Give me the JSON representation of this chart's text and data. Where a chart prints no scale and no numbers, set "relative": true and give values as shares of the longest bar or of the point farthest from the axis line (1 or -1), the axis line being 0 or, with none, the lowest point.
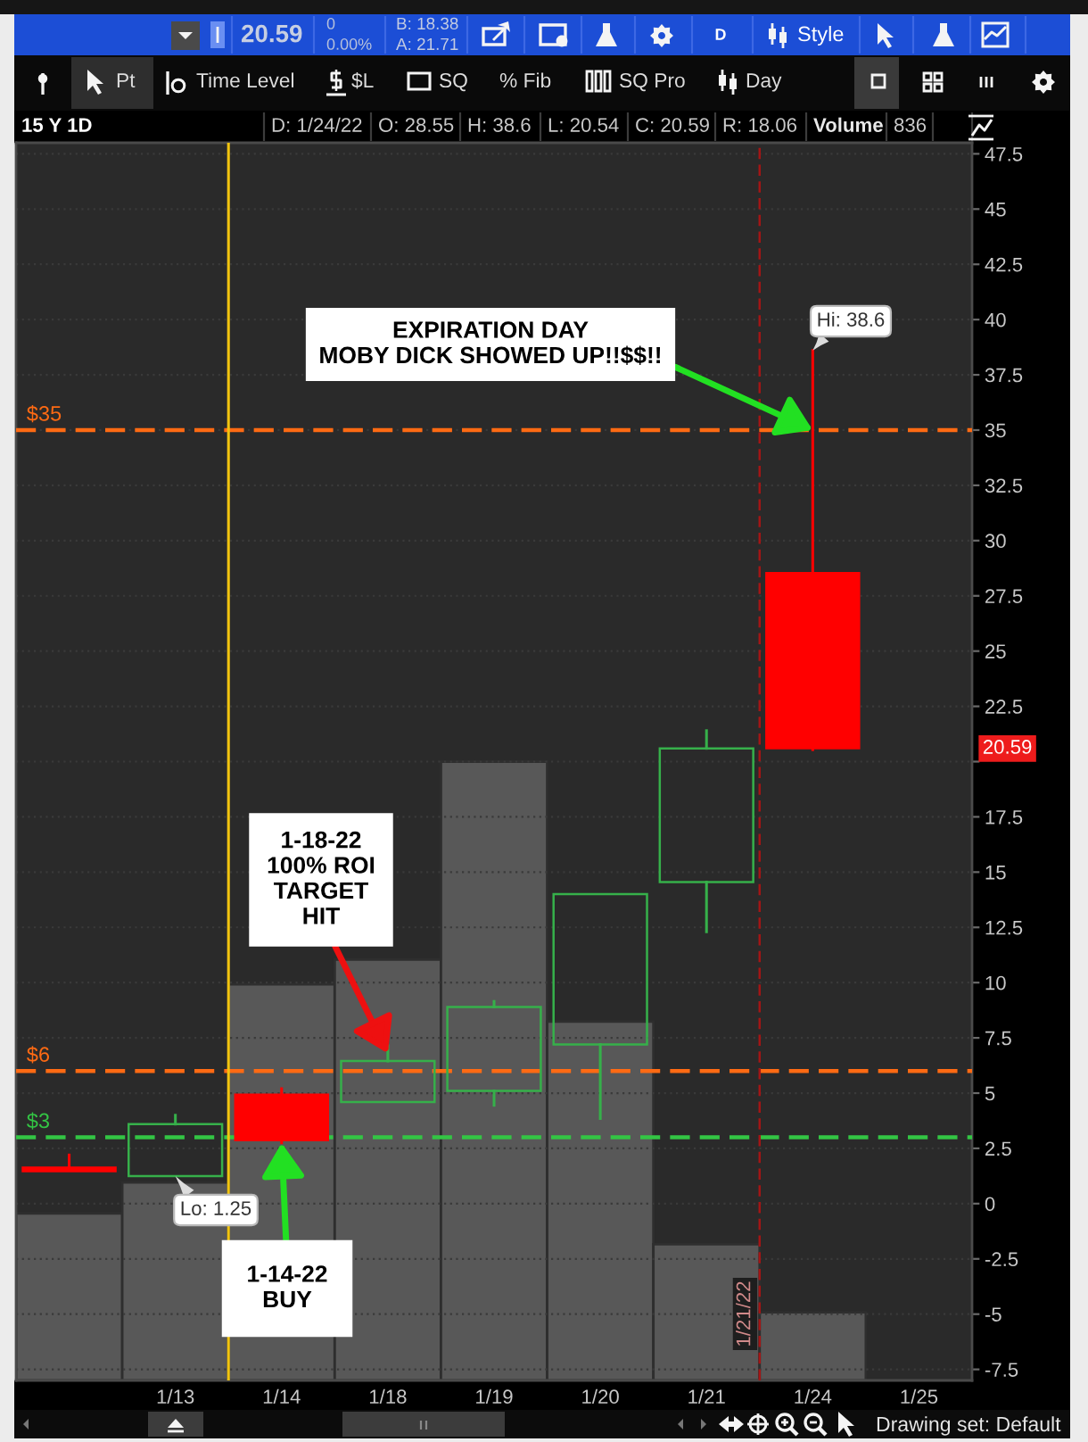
{
  "chart_data": [
    {
      "type": "candlestick",
      "categories": [
        null,
        "1/13",
        "1/14",
        "1/18",
        "1/19",
        "1/20",
        "1/21",
        "1/24",
        "1/25"
      ],
      "ohlc": [
        [
          1.65,
          2.2,
          1.45,
          1.45
        ],
        [
          1.25,
          4.0,
          1.25,
          3.6
        ],
        [
          4.95,
          5.2,
          2.75,
          2.85
        ],
        [
          4.6,
          7.15,
          4.6,
          6.45
        ],
        [
          5.1,
          9.15,
          4.45,
          8.9
        ],
        [
          7.2,
          14.0,
          3.85,
          14.0
        ],
        [
          14.55,
          21.4,
          12.3,
          20.6
        ],
        [
          28.55,
          38.6,
          20.54,
          20.59
        ],
        null
      ],
      "colors": [
        "#ff0000",
        "#36b04a",
        "#ff0000",
        "#36b04a",
        "#36b04a",
        "#36b04a",
        "#36b04a",
        "#ff0000",
        null
      ],
      "ylim": [
        -8,
        48
      ],
      "yticks": [
        -7.5,
        -5,
        -2.5,
        0,
        2.5,
        5,
        7.5,
        10,
        12.5,
        15,
        17.5,
        {
          "value": 20,
          "label": null
        },
        22.5,
        25,
        27.5,
        30,
        32.5,
        35,
        37.5,
        40,
        42.5,
        45,
        47.5
      ],
      "grid": "y",
      "ref_lines": [
        {
          "axis": "y",
          "value": 35,
          "label": "$35",
          "color": "#ff6a13",
          "line_style": "dashed"
        },
        {
          "axis": "y",
          "value": 6,
          "label": "$6",
          "color": "#ff6a13",
          "line_style": "dashed"
        },
        {
          "axis": "y",
          "value": 3,
          "label": "$3",
          "color": "#33c544",
          "line_style": "dashed"
        },
        {
          "axis": "x",
          "value": "1/13",
          "color": "#f2c40f",
          "line_style": "solid"
        },
        {
          "axis": "x",
          "value": "1/21",
          "label": "1/21/22",
          "color": "#a31515",
          "line_style": "dashed"
        }
      ],
      "annotations": [
        {
          "text": "EXPIRATION DAY\nMOBY DICK SHOWED UP!!$$!!",
          "x": "1/24",
          "y": 35
        },
        {
          "text": "1-18-22\n100% ROI\nTARGET\nHIT",
          "x": "1/18",
          "y": 6.8
        },
        {
          "text": "1-14-22\nBUY",
          "x": "1/14",
          "y": 2.75
        },
        {
          "text": "Hi: 38.6",
          "x": "1/24",
          "y": 38.6
        },
        {
          "text": "Lo: 1.25",
          "x": "1/13",
          "y": 1.25
        },
        "20.59",
        "20.59",
        "0",
        "0.00%",
        "B: 18.38",
        "A: 21.71",
        "D",
        "Style",
        "Pt",
        "Time Level",
        "$L",
        "SQ",
        "% Fib",
        "SQ Pro",
        "Day",
        "15 Y 1D",
        "D: 1/24/22",
        "O: 28.55",
        "H: 38.6",
        "L: 20.54",
        "C: 20.59",
        "R: 18.06",
        "Volume",
        "836",
        "Drawing set: Default"
      ]
    },
    {
      "type": "bar",
      "categories": [
        null,
        null,
        null,
        null,
        null,
        null,
        null,
        null,
        null
      ],
      "values": [
        0.27,
        0.32,
        0.64,
        0.68,
        1,
        0.58,
        0.22,
        0.11,
        null
      ],
      "color": "#585858",
      "relative": true
    }
  ]
}
